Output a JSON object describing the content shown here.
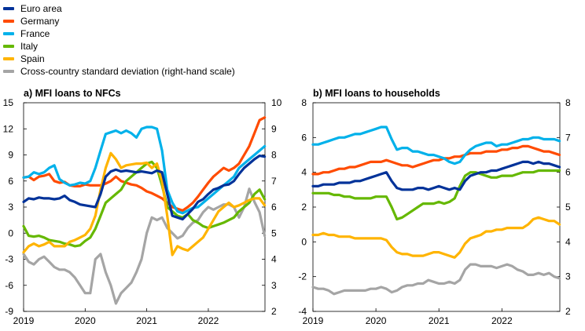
{
  "legend": [
    {
      "label": "Euro area",
      "color": "#003299"
    },
    {
      "label": "Germany",
      "color": "#ff4b00"
    },
    {
      "label": "France",
      "color": "#00b1ea"
    },
    {
      "label": "Italy",
      "color": "#65b800"
    },
    {
      "label": "Spain",
      "color": "#ffb400"
    },
    {
      "label": "Cross-country standard deviation (right-hand scale)",
      "color": "#a5a5a5"
    }
  ],
  "chart_data": [
    {
      "type": "line",
      "title": "a) MFI loans to NFCs",
      "x_ticks": [
        "2019",
        "2020",
        "2021",
        "2022"
      ],
      "x_start": 2019.0,
      "x_end": 2022.92,
      "x_step": 0.0833,
      "ylim": [
        -9,
        15
      ],
      "y_ticks": [
        "-9",
        "-6",
        "-3",
        "0",
        "3",
        "6",
        "9",
        "12",
        "15"
      ],
      "y2lim": [
        2,
        10
      ],
      "y2_ticks": [
        "2",
        "3",
        "4",
        "5",
        "6",
        "7",
        "8",
        "9",
        "10"
      ],
      "series": [
        {
          "name": "Euro area",
          "color": "#003299",
          "axis": "left",
          "values": [
            3.6,
            4.0,
            3.9,
            4.1,
            4.0,
            4.0,
            3.9,
            4.0,
            4.3,
            3.8,
            3.6,
            3.3,
            3.2,
            3.1,
            3.0,
            4.5,
            6.5,
            7.1,
            7.3,
            7.1,
            7.2,
            7.1,
            7.0,
            7.1,
            7.0,
            6.9,
            7.2,
            7.0,
            4.5,
            2.0,
            1.8,
            1.6,
            2.2,
            2.8,
            3.6,
            3.9,
            4.5,
            5.0,
            5.2,
            5.5,
            5.6,
            6.0,
            6.8,
            7.5,
            8.0,
            8.5,
            8.9,
            8.8
          ]
        },
        {
          "name": "Germany",
          "color": "#ff4b00",
          "axis": "left",
          "values": [
            6.4,
            6.5,
            6.1,
            6.5,
            6.6,
            6.8,
            6.0,
            5.8,
            5.9,
            5.5,
            5.4,
            5.4,
            5.6,
            5.5,
            5.5,
            5.5,
            5.7,
            6.0,
            6.5,
            6.0,
            5.8,
            5.6,
            5.5,
            5.2,
            4.8,
            4.6,
            4.3,
            4.0,
            3.5,
            3.0,
            2.8,
            2.6,
            3.0,
            3.5,
            4.2,
            5.0,
            5.8,
            6.5,
            7.0,
            7.5,
            7.2,
            7.5,
            8.0,
            9.0,
            10.0,
            11.5,
            13.0,
            13.3
          ]
        },
        {
          "name": "France",
          "color": "#00b1ea",
          "axis": "left",
          "values": [
            6.4,
            6.5,
            7.0,
            6.8,
            7.0,
            7.5,
            7.8,
            6.2,
            5.8,
            5.5,
            5.6,
            5.8,
            5.7,
            6.0,
            7.5,
            9.5,
            11.4,
            11.6,
            11.8,
            11.5,
            11.8,
            11.5,
            11.0,
            12.0,
            12.2,
            12.2,
            12.0,
            9.5,
            5.0,
            3.5,
            2.5,
            2.3,
            2.6,
            2.9,
            3.0,
            3.5,
            4.0,
            4.5,
            5.0,
            5.5,
            6.0,
            6.5,
            7.5,
            8.0,
            8.5,
            9.0,
            9.5,
            10.0
          ]
        },
        {
          "name": "Italy",
          "color": "#65b800",
          "axis": "left",
          "values": [
            0.8,
            -0.3,
            -0.4,
            -0.3,
            -0.5,
            -0.8,
            -0.9,
            -1.0,
            -1.2,
            -1.3,
            -1.5,
            -1.4,
            -0.9,
            -0.5,
            0.5,
            2.0,
            3.5,
            4.0,
            4.5,
            5.0,
            6.0,
            6.5,
            7.0,
            7.5,
            8.0,
            8.2,
            7.5,
            5.5,
            3.0,
            2.5,
            2.0,
            1.8,
            2.2,
            1.5,
            1.2,
            0.8,
            0.6,
            0.8,
            1.0,
            1.2,
            1.5,
            1.8,
            2.5,
            3.0,
            3.5,
            4.5,
            5.0,
            3.9
          ]
        },
        {
          "name": "Spain",
          "color": "#ffb400",
          "axis": "left",
          "values": [
            -2.2,
            -1.5,
            -1.2,
            -1.5,
            -1.3,
            -1.0,
            -1.5,
            -1.5,
            -1.5,
            -1.0,
            -0.8,
            -0.5,
            -0.2,
            0.5,
            2.0,
            5.0,
            7.5,
            9.2,
            8.5,
            7.5,
            7.8,
            7.9,
            8.0,
            8.0,
            8.1,
            7.5,
            8.0,
            6.0,
            2.0,
            -2.5,
            -1.5,
            -1.8,
            -2.0,
            -1.5,
            -1.0,
            -0.5,
            0.5,
            1.5,
            2.5,
            3.0,
            3.5,
            3.0,
            3.2,
            3.5,
            3.8,
            4.0,
            4.0,
            3.2
          ]
        },
        {
          "name": "Cross-country standard deviation (right-hand scale)",
          "color": "#a5a5a5",
          "axis": "right",
          "values": [
            4.2,
            3.9,
            3.8,
            4.0,
            4.1,
            3.9,
            3.7,
            3.6,
            3.6,
            3.5,
            3.3,
            3.0,
            2.7,
            2.7,
            4.0,
            4.2,
            3.5,
            3.0,
            2.3,
            2.7,
            2.9,
            3.1,
            3.5,
            4.0,
            5.0,
            5.6,
            5.5,
            5.6,
            5.2,
            5.0,
            4.8,
            4.9,
            5.2,
            5.4,
            5.5,
            5.8,
            6.0,
            5.9,
            6.0,
            6.1,
            6.1,
            6.0,
            5.6,
            6.0,
            6.7,
            6.2,
            5.8,
            4.9
          ]
        }
      ]
    },
    {
      "type": "line",
      "title": "b) MFI loans to households",
      "x_ticks": [
        "2019",
        "2020",
        "2021",
        "2022"
      ],
      "x_start": 2019.0,
      "x_end": 2022.92,
      "x_step": 0.0833,
      "ylim": [
        -4,
        8
      ],
      "y_ticks": [
        "-4",
        "-2",
        "0",
        "2",
        "4",
        "6",
        "8"
      ],
      "y2lim": [
        2,
        8
      ],
      "y2_ticks": [
        "2",
        "3",
        "4",
        "5",
        "6",
        "7",
        "8"
      ],
      "series": [
        {
          "name": "Euro area",
          "color": "#003299",
          "axis": "left",
          "values": [
            3.2,
            3.2,
            3.3,
            3.3,
            3.3,
            3.4,
            3.4,
            3.4,
            3.5,
            3.5,
            3.6,
            3.7,
            3.8,
            3.9,
            4.0,
            3.5,
            3.1,
            3.0,
            3.0,
            3.0,
            3.1,
            3.1,
            3.0,
            3.1,
            3.2,
            3.1,
            3.0,
            3.1,
            3.0,
            3.5,
            3.8,
            3.9,
            4.0,
            4.0,
            4.1,
            4.1,
            4.2,
            4.3,
            4.4,
            4.5,
            4.6,
            4.6,
            4.5,
            4.6,
            4.5,
            4.5,
            4.4,
            4.3
          ]
        },
        {
          "name": "Germany",
          "color": "#ff4b00",
          "axis": "left",
          "values": [
            3.9,
            3.9,
            4.0,
            4.0,
            4.1,
            4.2,
            4.2,
            4.3,
            4.3,
            4.4,
            4.5,
            4.6,
            4.6,
            4.6,
            4.7,
            4.6,
            4.5,
            4.4,
            4.4,
            4.3,
            4.4,
            4.5,
            4.6,
            4.7,
            4.7,
            4.8,
            4.8,
            4.9,
            4.9,
            5.0,
            5.1,
            5.1,
            5.1,
            5.2,
            5.2,
            5.2,
            5.3,
            5.3,
            5.4,
            5.4,
            5.5,
            5.5,
            5.4,
            5.3,
            5.2,
            5.2,
            5.1,
            5.0
          ]
        },
        {
          "name": "France",
          "color": "#00b1ea",
          "axis": "left",
          "values": [
            5.6,
            5.6,
            5.7,
            5.8,
            5.9,
            6.0,
            6.0,
            6.1,
            6.2,
            6.2,
            6.3,
            6.4,
            6.5,
            6.6,
            6.6,
            5.9,
            5.3,
            5.4,
            5.4,
            5.2,
            5.2,
            5.1,
            5.0,
            5.0,
            4.9,
            4.8,
            4.6,
            4.5,
            4.6,
            5.0,
            5.3,
            5.5,
            5.6,
            5.7,
            5.7,
            5.5,
            5.6,
            5.6,
            5.7,
            5.8,
            5.9,
            5.9,
            6.0,
            6.0,
            5.9,
            5.9,
            5.9,
            5.8
          ]
        },
        {
          "name": "Italy",
          "color": "#65b800",
          "axis": "left",
          "values": [
            2.8,
            2.8,
            2.8,
            2.8,
            2.7,
            2.7,
            2.6,
            2.6,
            2.5,
            2.5,
            2.5,
            2.5,
            2.6,
            2.6,
            2.6,
            2.0,
            1.3,
            1.4,
            1.6,
            1.8,
            2.0,
            2.2,
            2.2,
            2.2,
            2.3,
            2.2,
            2.3,
            2.5,
            3.2,
            3.8,
            4.0,
            4.0,
            3.9,
            3.8,
            3.7,
            3.7,
            3.8,
            3.8,
            3.8,
            3.9,
            4.0,
            4.0,
            4.0,
            4.1,
            4.1,
            4.1,
            4.1,
            4.1
          ]
        },
        {
          "name": "Spain",
          "color": "#ffb400",
          "axis": "left",
          "values": [
            0.4,
            0.4,
            0.5,
            0.4,
            0.4,
            0.3,
            0.3,
            0.3,
            0.2,
            0.2,
            0.2,
            0.2,
            0.2,
            0.2,
            0.1,
            -0.3,
            -0.6,
            -0.7,
            -0.7,
            -0.8,
            -0.8,
            -0.8,
            -0.7,
            -0.6,
            -0.6,
            -0.7,
            -0.8,
            -0.9,
            -0.6,
            -0.1,
            0.2,
            0.3,
            0.4,
            0.6,
            0.6,
            0.7,
            0.7,
            0.8,
            0.8,
            0.8,
            0.8,
            1.0,
            1.3,
            1.4,
            1.3,
            1.2,
            1.2,
            1.0
          ]
        },
        {
          "name": "Cross-country standard deviation (right-hand scale)",
          "color": "#a5a5a5",
          "axis": "right",
          "values": [
            2.7,
            2.65,
            2.65,
            2.6,
            2.5,
            2.55,
            2.6,
            2.6,
            2.6,
            2.6,
            2.6,
            2.65,
            2.65,
            2.7,
            2.65,
            2.55,
            2.6,
            2.7,
            2.75,
            2.75,
            2.8,
            2.8,
            2.9,
            2.85,
            2.8,
            2.8,
            2.85,
            2.8,
            2.9,
            3.2,
            3.35,
            3.35,
            3.3,
            3.3,
            3.3,
            3.25,
            3.3,
            3.35,
            3.3,
            3.2,
            3.15,
            3.05,
            3.05,
            3.1,
            3.05,
            3.1,
            3.0,
            2.95
          ]
        }
      ]
    }
  ]
}
